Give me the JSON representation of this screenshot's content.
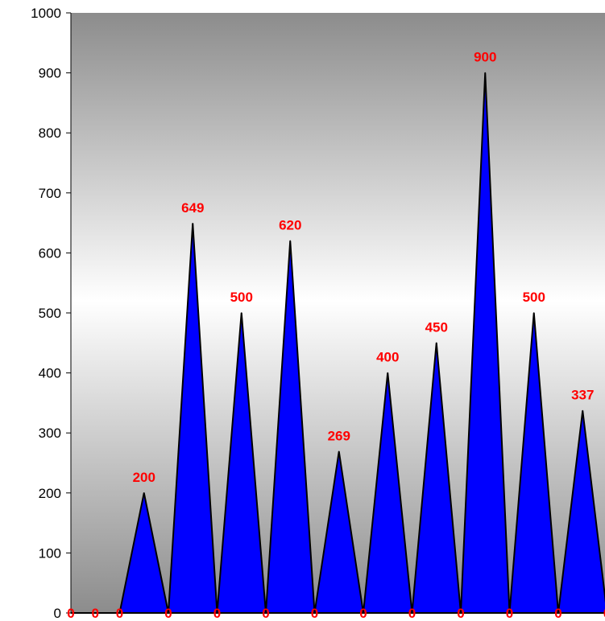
{
  "chart_data": {
    "type": "area",
    "title": "",
    "xlabel": "",
    "ylabel": "",
    "ylim": [
      0,
      1000
    ],
    "yticks": [
      "0",
      "100",
      "200",
      "300",
      "400",
      "500",
      "600",
      "700",
      "800",
      "900",
      "1000"
    ],
    "grid": false,
    "legend": "none",
    "series": [
      {
        "values": [
          0,
          0,
          0,
          200,
          0,
          649,
          0,
          500,
          0,
          620,
          0,
          269,
          0,
          400,
          0,
          450,
          0,
          900,
          0,
          500,
          0,
          337,
          0
        ]
      }
    ],
    "data_labels": [
      "0",
      "0",
      "0",
      "200",
      "0",
      "649",
      "0",
      "500",
      "0",
      "620",
      "0",
      "269",
      "0",
      "400",
      "0",
      "450",
      "0",
      "900",
      "0",
      "500",
      "0",
      "337",
      "0"
    ],
    "colors": {
      "fill": "#0000ff",
      "stroke": "#000000",
      "label": "#ff0000",
      "plot_gradient_top": "#8c8c8c",
      "plot_gradient_mid": "#ffffff",
      "plot_gradient_bottom": "#8c8c8c"
    }
  }
}
